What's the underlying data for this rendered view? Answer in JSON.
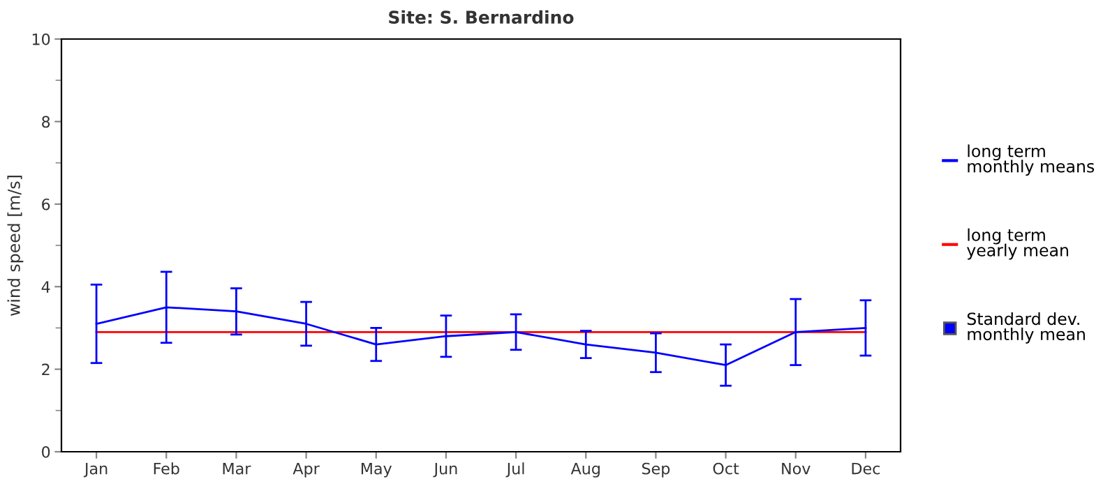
{
  "chart_data": {
    "type": "line",
    "title": "Site: S. Bernardino",
    "ylabel": "wind speed [m/s]",
    "categories": [
      "Jan",
      "Feb",
      "Mar",
      "Apr",
      "May",
      "Jun",
      "Jul",
      "Aug",
      "Sep",
      "Oct",
      "Nov",
      "Dec"
    ],
    "series": [
      {
        "name": "long term\nmonthly means",
        "color": "#0000ff",
        "values": [
          3.1,
          3.5,
          3.4,
          3.1,
          2.6,
          2.8,
          2.9,
          2.6,
          2.4,
          2.1,
          2.9,
          3.0
        ],
        "errors": [
          0.95,
          0.86,
          0.56,
          0.53,
          0.4,
          0.5,
          0.43,
          0.33,
          0.47,
          0.5,
          0.8,
          0.67
        ]
      },
      {
        "name": "long term\nyearly mean",
        "color": "#ff0000",
        "values": [
          2.9,
          2.9,
          2.9,
          2.9,
          2.9,
          2.9,
          2.9,
          2.9,
          2.9,
          2.9,
          2.9,
          2.9
        ]
      }
    ],
    "annotations": [
      "Standard dev.\nmonthly mean"
    ],
    "ylim": [
      0,
      10
    ],
    "yticks": [
      0,
      2,
      4,
      6,
      8,
      10
    ],
    "grid": false,
    "legend": "right"
  }
}
